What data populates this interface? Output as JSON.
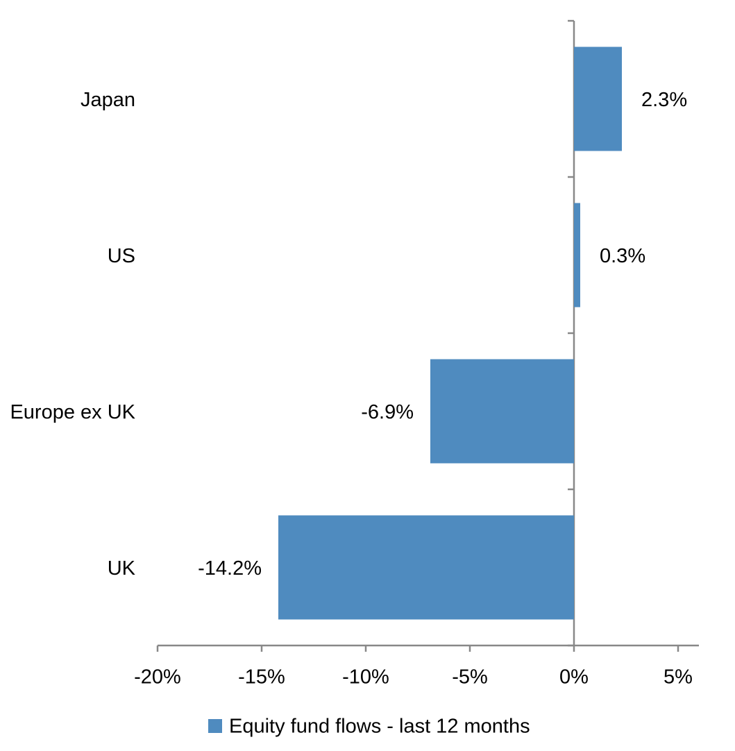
{
  "chart_data": {
    "type": "hbar",
    "categories": [
      "Japan",
      "US",
      "Europe ex UK",
      "UK"
    ],
    "series": [
      {
        "name": "Equity fund flows - last 12 months",
        "color": "#4f8bbf",
        "values": [
          2.3,
          0.3,
          -6.9,
          -14.2
        ],
        "value_labels": [
          "2.3%",
          "0.3%",
          "-6.9%",
          "-14.2%"
        ]
      }
    ],
    "xlim": [
      -20,
      6
    ],
    "xticks": [
      {
        "value": -20,
        "label": "-20%"
      },
      {
        "value": -15,
        "label": "-15%"
      },
      {
        "value": -10,
        "label": "-10%"
      },
      {
        "value": -5,
        "label": "-5%"
      },
      {
        "value": 0,
        "label": "0%"
      },
      {
        "value": 5,
        "label": "5%"
      }
    ],
    "legend": "bottom"
  }
}
